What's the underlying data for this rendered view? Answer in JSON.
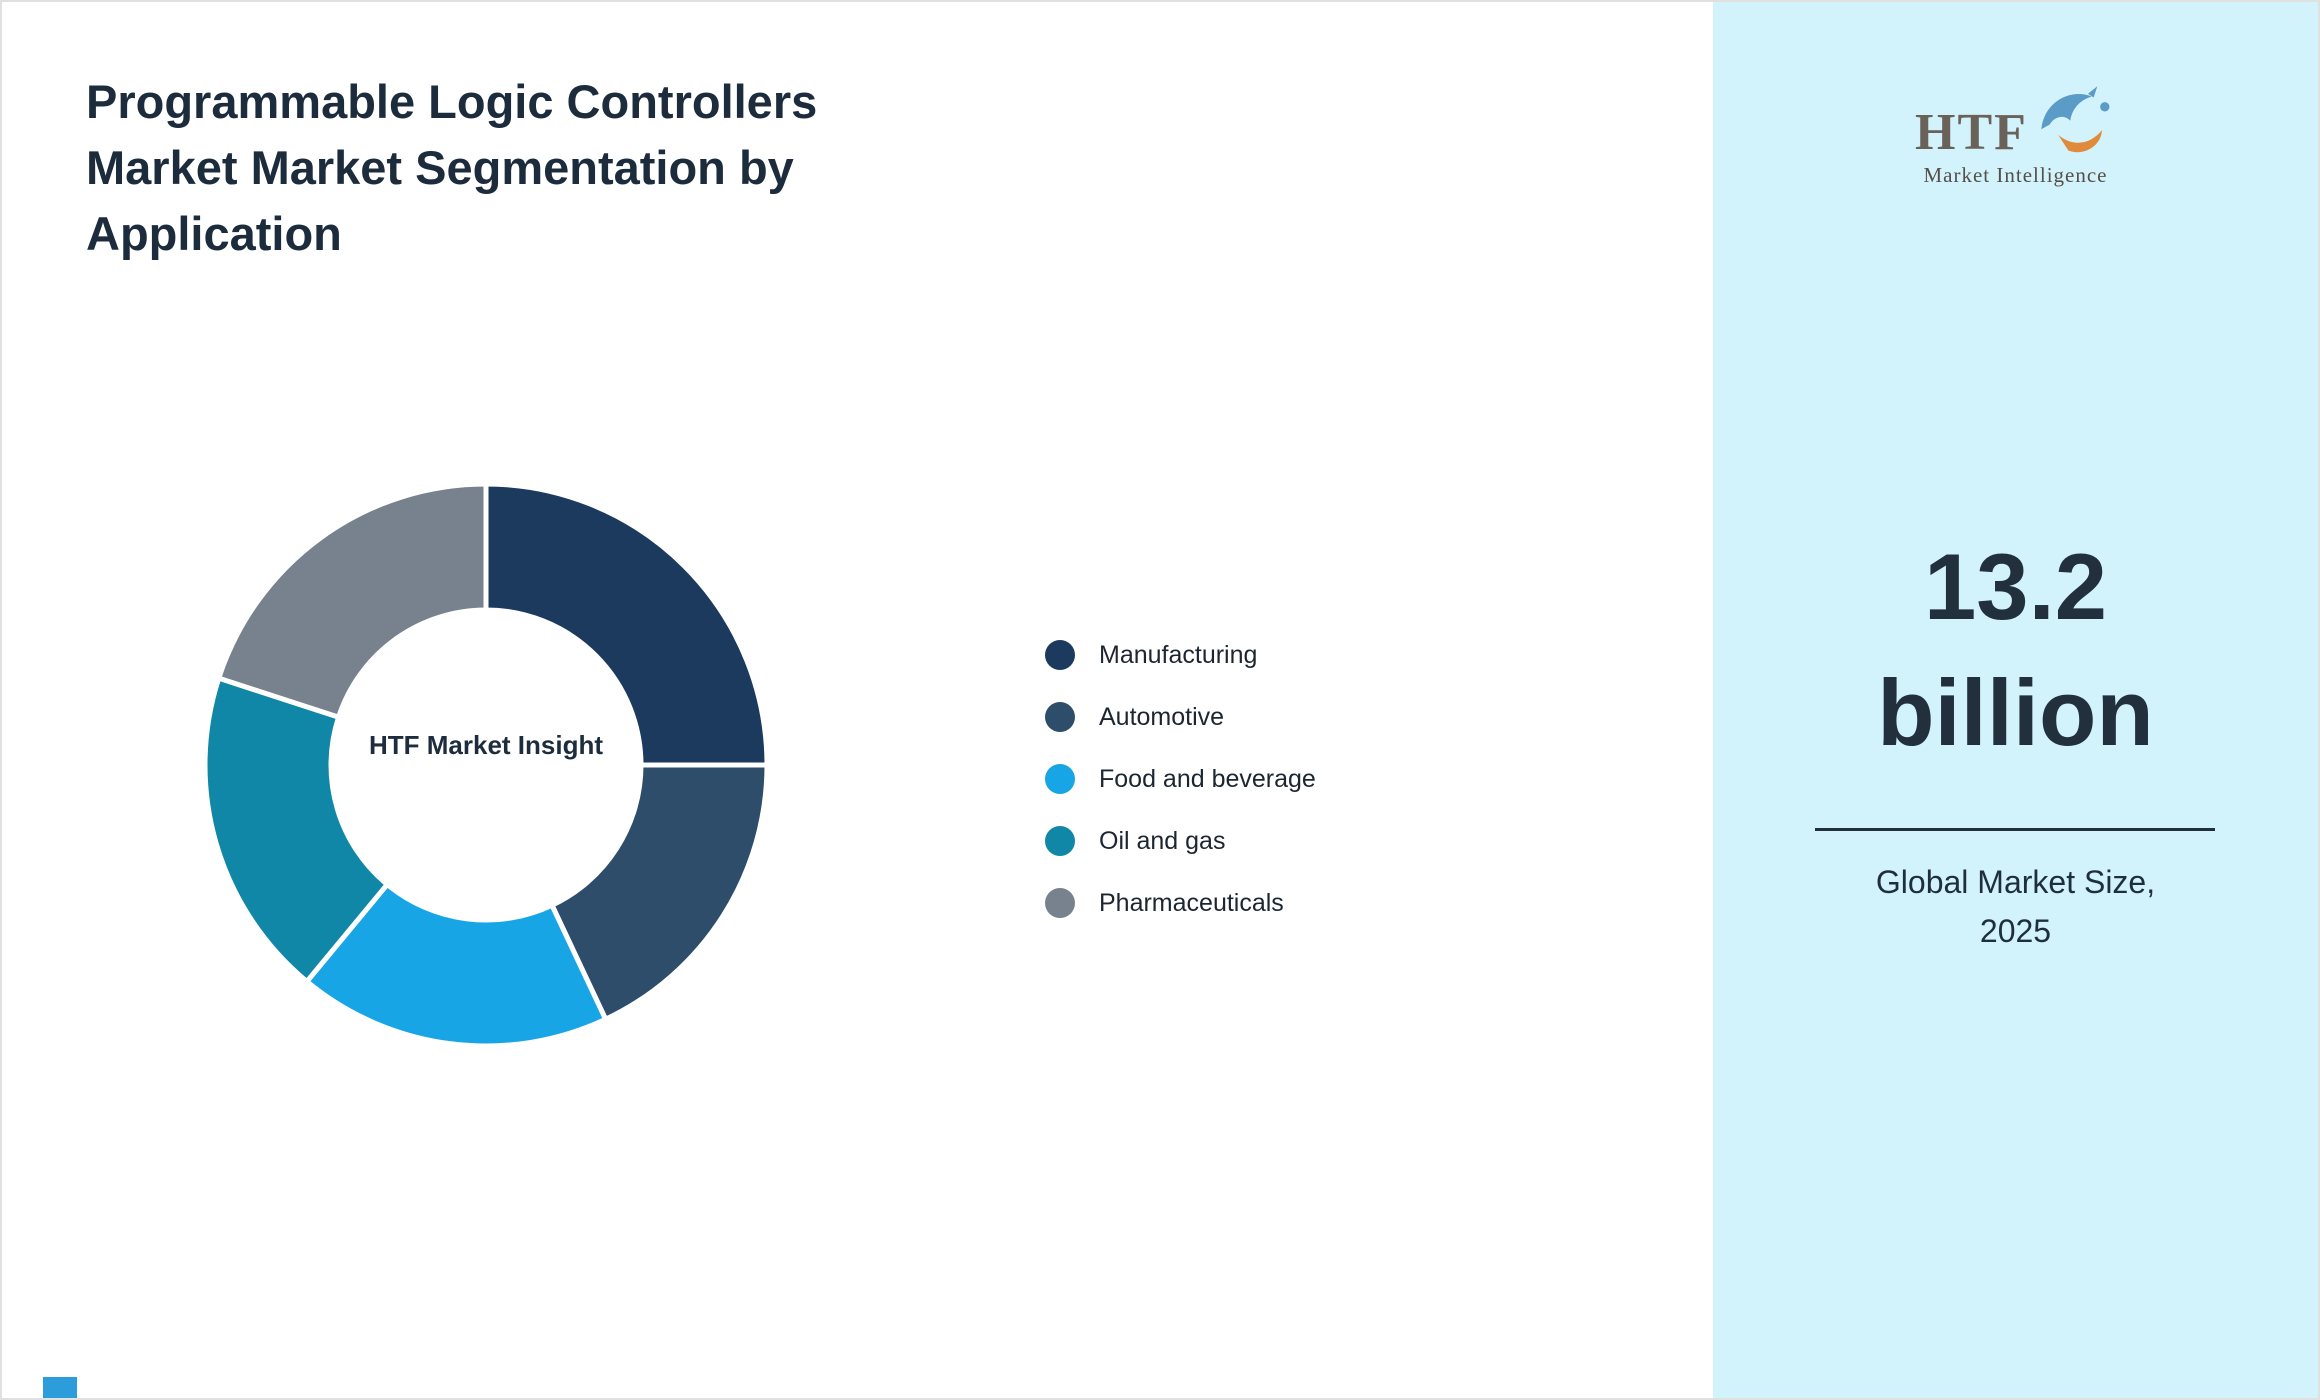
{
  "page": {
    "title": "Programmable Logic Controllers Market Market Segmentation by Application",
    "title_lines": [
      "Programmable Logic Controllers",
      "Market Market Segmentation by",
      "Application"
    ],
    "background": "#FFFFFF",
    "text_color": "#1F2E3D",
    "accent_square_color": "#2D9CDB"
  },
  "chart_data": {
    "type": "pie",
    "subtype": "donut",
    "title": "Programmable Logic Controllers Market Market Segmentation by Application",
    "center_label": "HTF Market Insight",
    "legend_position": "right",
    "values_unit": "percent share, estimated from arc angles",
    "segments": [
      {
        "label": "Manufacturing",
        "value": 25,
        "color": "#1C3A5E"
      },
      {
        "label": "Automotive",
        "value": 18,
        "color": "#2E4D6B"
      },
      {
        "label": "Food and beverage",
        "value": 18,
        "color": "#18A5E6"
      },
      {
        "label": "Oil and gas",
        "value": 19,
        "color": "#1187A8"
      },
      {
        "label": "Pharmaceuticals",
        "value": 20,
        "color": "#78828E"
      }
    ]
  },
  "sidebar": {
    "background": "#D2F3FB",
    "logo": {
      "wordmark": "HTF",
      "subtext": "Market Intelligence"
    },
    "market_size": {
      "line1": "13.2",
      "line2": "billion",
      "caption_line1": "Global Market Size,",
      "caption_line2": "2025"
    }
  }
}
